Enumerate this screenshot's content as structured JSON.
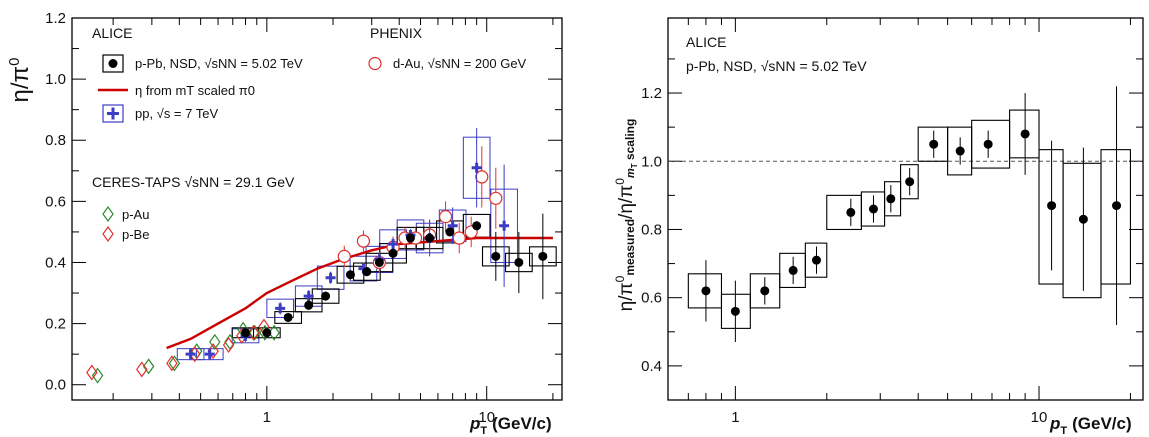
{
  "chart_data": [
    {
      "type": "scatter",
      "xlabel_main": "p",
      "xlabel_sub": "T",
      "xlabel_unit": "(GeV/c)",
      "ylabel": "η/π",
      "ylabel_sup": "0",
      "x_scale": "log",
      "xlim": [
        0.13,
        22
      ],
      "ylim": [
        -0.05,
        1.2
      ],
      "x_tick_labels": [
        "1",
        "10"
      ],
      "y_tick_labels": [
        "0.0",
        "0.2",
        "0.4",
        "0.6",
        "0.8",
        "1.0",
        "1.2"
      ],
      "grid": false,
      "legend_alice_title": "ALICE",
      "legend_phenix_title": "PHENIX",
      "legend_ceres_title": "CERES-TAPS √sNN = 29.1 GeV",
      "legend_ppb": "p-Pb, NSD, √sNN = 5.02 TeV",
      "legend_mt": "η from mT scaled π0",
      "legend_pp": "pp, √s = 7 TeV",
      "legend_dau": "d-Au, √sNN = 200 GeV",
      "legend_pau": "p-Au",
      "legend_pbe": "p-Be",
      "colors": {
        "alice": "#000000",
        "phenix": "#e0302a",
        "pp": "#3c3cc4",
        "pau": "#2a8a2a",
        "pbe": "#e0302a",
        "mt": "#cc0000"
      },
      "series": [
        {
          "name": "p-Pb, NSD, √sNN = 5.02 TeV",
          "marker": "filled-circle",
          "x": [
            0.8,
            1.0,
            1.25,
            1.55,
            1.85,
            2.4,
            2.85,
            3.25,
            3.75,
            4.5,
            5.5,
            6.8,
            9.0,
            11.0,
            14.0,
            18.0
          ],
          "y": [
            0.17,
            0.17,
            0.22,
            0.26,
            0.29,
            0.36,
            0.37,
            0.4,
            0.43,
            0.48,
            0.48,
            0.5,
            0.52,
            0.42,
            0.4,
            0.42
          ]
        },
        {
          "name": "d-Au, √sNN = 200 GeV",
          "marker": "open-circle",
          "x": [
            2.25,
            2.75,
            3.25,
            3.75,
            4.25,
            4.75,
            5.5,
            6.5,
            7.5,
            8.5,
            9.5,
            11.0
          ],
          "y": [
            0.42,
            0.47,
            0.4,
            0.45,
            0.48,
            0.48,
            0.49,
            0.55,
            0.48,
            0.5,
            0.68,
            0.61
          ]
        },
        {
          "name": "pp, √s = 7 TeV",
          "marker": "cross",
          "x": [
            0.45,
            0.55,
            0.8,
            1.15,
            1.55,
            1.95,
            2.75,
            3.25,
            3.75,
            4.5,
            5.5,
            7.0,
            9.0,
            12.0
          ],
          "y": [
            0.1,
            0.1,
            0.16,
            0.25,
            0.29,
            0.35,
            0.38,
            0.41,
            0.46,
            0.49,
            0.48,
            0.52,
            0.71,
            0.52
          ]
        },
        {
          "name": "p-Au",
          "marker": "open-diamond",
          "x": [
            0.17,
            0.29,
            0.38,
            0.48,
            0.58,
            0.68,
            0.78,
            0.88,
            0.98,
            1.08
          ],
          "y": [
            0.03,
            0.06,
            0.07,
            0.11,
            0.14,
            0.14,
            0.18,
            0.17,
            0.17,
            0.17
          ]
        },
        {
          "name": "p-Be",
          "marker": "open-diamond",
          "x": [
            0.16,
            0.27,
            0.37,
            0.47,
            0.57,
            0.67,
            0.77,
            0.87,
            0.97
          ],
          "y": [
            0.04,
            0.05,
            0.07,
            0.1,
            0.11,
            0.13,
            0.16,
            0.17,
            0.19
          ]
        },
        {
          "name": "η from mT scaled π0",
          "marker": "line",
          "x": [
            0.35,
            0.45,
            0.6,
            0.8,
            1.0,
            1.3,
            1.7,
            2.2,
            3.0,
            4.0,
            6.0,
            9.0,
            14.0,
            20.0
          ],
          "y": [
            0.12,
            0.15,
            0.2,
            0.25,
            0.3,
            0.34,
            0.38,
            0.41,
            0.44,
            0.46,
            0.47,
            0.48,
            0.48,
            0.48
          ]
        }
      ]
    },
    {
      "type": "scatter",
      "xlabel_main": "p",
      "xlabel_sub": "T",
      "xlabel_unit": "(GeV/c)",
      "ylabel": "η/π0measured/η/π0mT scaling",
      "x_scale": "log",
      "xlim": [
        0.6,
        22
      ],
      "ylim": [
        0.3,
        1.42
      ],
      "x_tick_labels": [
        "1",
        "10"
      ],
      "y_tick_labels": [
        "0.4",
        "0.6",
        "0.8",
        "1.0",
        "1.2"
      ],
      "reference_line": 1.0,
      "grid": false,
      "label_alice": "ALICE",
      "label_system": "p-Pb, NSD, √sNN = 5.02 TeV",
      "series": [
        {
          "name": "p-Pb, NSD, √sNN = 5.02 TeV",
          "marker": "filled-circle",
          "x": [
            0.8,
            1.0,
            1.25,
            1.55,
            1.85,
            2.4,
            2.85,
            3.25,
            3.75,
            4.5,
            5.5,
            6.8,
            9.0,
            11.0,
            14.0,
            18.0
          ],
          "y": [
            0.62,
            0.56,
            0.62,
            0.68,
            0.71,
            0.85,
            0.86,
            0.89,
            0.94,
            1.05,
            1.03,
            1.05,
            1.08,
            0.87,
            0.83,
            0.87
          ]
        }
      ]
    }
  ]
}
